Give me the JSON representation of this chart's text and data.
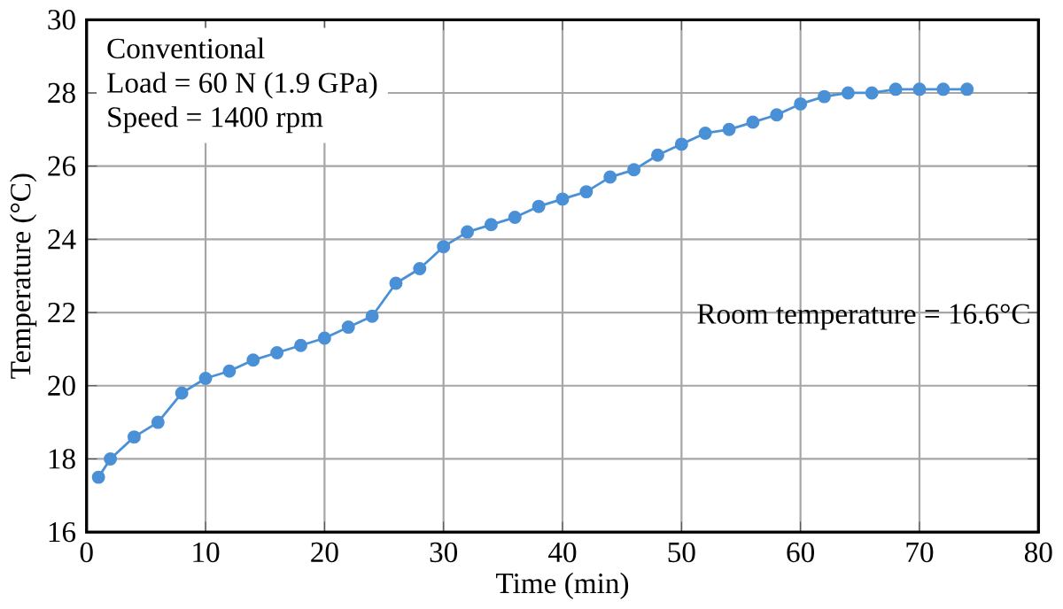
{
  "chart_data": {
    "type": "line",
    "xlabel": "Time (min)",
    "ylabel": "Temperature (°C)",
    "x": [
      1,
      2,
      4,
      6,
      8,
      10,
      12,
      14,
      16,
      18,
      20,
      22,
      24,
      26,
      28,
      30,
      32,
      34,
      36,
      38,
      40,
      42,
      44,
      46,
      48,
      50,
      52,
      54,
      56,
      58,
      60,
      62,
      64,
      66,
      68,
      70,
      72,
      74
    ],
    "series": [
      {
        "color": "#4a90d6",
        "values": [
          17.5,
          18.0,
          18.6,
          19.0,
          19.8,
          20.2,
          20.4,
          20.7,
          20.9,
          21.1,
          21.3,
          21.6,
          21.9,
          22.8,
          23.2,
          23.8,
          24.2,
          24.4,
          24.6,
          24.9,
          25.1,
          25.3,
          25.7,
          25.9,
          26.3,
          26.6,
          26.9,
          27.0,
          27.2,
          27.4,
          27.7,
          27.9,
          28.0,
          28.0,
          28.1,
          28.1,
          28.1,
          28.1
        ]
      }
    ],
    "xlim": [
      0,
      80
    ],
    "ylim": [
      16,
      30
    ],
    "xticks": [
      0,
      10,
      20,
      30,
      40,
      50,
      60,
      70,
      80
    ],
    "yticks": [
      16,
      18,
      20,
      22,
      24,
      26,
      28,
      30
    ],
    "grid": true,
    "marker": "circle",
    "line_style": "solid",
    "annotations": [
      "Conventional",
      "Load = 60 N (1.9 GPa)",
      "Speed = 1400 rpm",
      "Room temperature = 16.6°C"
    ]
  }
}
